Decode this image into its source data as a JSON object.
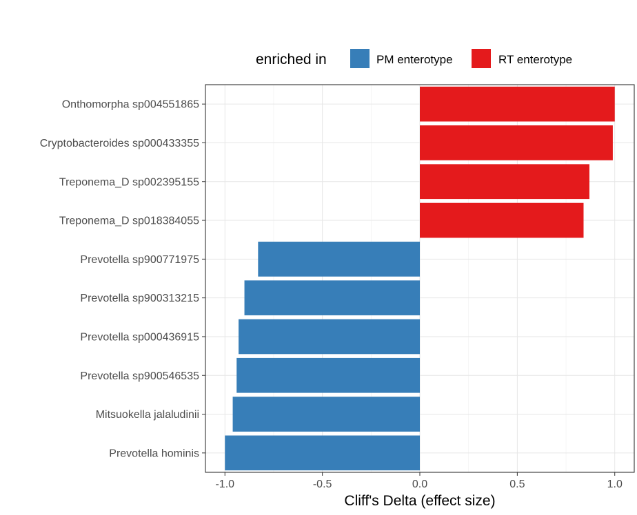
{
  "chart_data": {
    "type": "bar",
    "orientation": "horizontal",
    "title": "",
    "xlabel": "Cliff's Delta (effect size)",
    "ylabel": "",
    "xlim": [
      -1.1,
      1.1
    ],
    "x_ticks": [
      -1.0,
      -0.5,
      0.0,
      0.5,
      1.0
    ],
    "x_tick_labels": [
      "-1.0",
      "-0.5",
      "0.0",
      "0.5",
      "1.0"
    ],
    "grid": true,
    "legend": {
      "title": "enriched in",
      "position": "top",
      "entries": [
        {
          "label": "PM enterotype",
          "color": "#377EB8"
        },
        {
          "label": "RT enterotype",
          "color": "#E41A1C"
        }
      ]
    },
    "categories": [
      "Onthomorpha sp004551865",
      "Cryptobacteroides sp000433355",
      "Treponema_D sp002395155",
      "Treponema_D sp018384055",
      "Prevotella sp900771975",
      "Prevotella sp900313215",
      "Prevotella sp000436915",
      "Prevotella sp900546535",
      "Mitsuokella jalaludinii",
      "Prevotella hominis"
    ],
    "values": [
      1.0,
      0.99,
      0.87,
      0.84,
      -0.83,
      -0.9,
      -0.93,
      -0.94,
      -0.96,
      -1.0
    ],
    "groups": [
      "RT enterotype",
      "RT enterotype",
      "RT enterotype",
      "RT enterotype",
      "PM enterotype",
      "PM enterotype",
      "PM enterotype",
      "PM enterotype",
      "PM enterotype",
      "PM enterotype"
    ]
  }
}
